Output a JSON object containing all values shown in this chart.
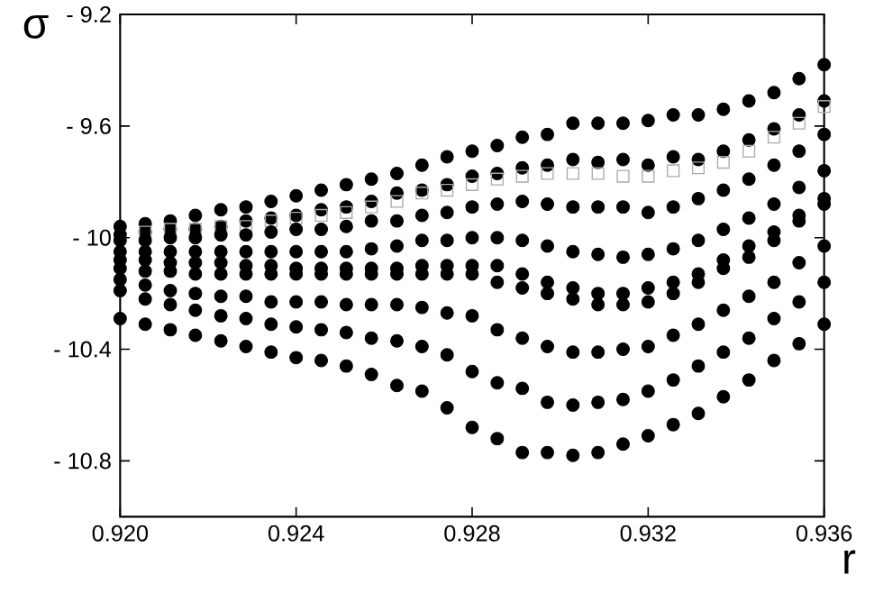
{
  "chart_data": {
    "type": "scatter",
    "xlabel": "r",
    "ylabel": "σ",
    "marker": "circle",
    "x": [
      0.92,
      0.92057,
      0.92114,
      0.92171,
      0.92229,
      0.92286,
      0.92343,
      0.924,
      0.92457,
      0.92514,
      0.92571,
      0.92629,
      0.92686,
      0.92743,
      0.928,
      0.92857,
      0.92914,
      0.92971,
      0.93029,
      0.93086,
      0.93143,
      0.932,
      0.93257,
      0.93314,
      0.93371,
      0.93429,
      0.93486,
      0.93543,
      0.936
    ],
    "series": [
      {
        "color": "#000000",
        "values": [
          -9.96,
          -9.95,
          -9.94,
          -9.92,
          -9.9,
          -9.89,
          -9.87,
          -9.85,
          -9.83,
          -9.81,
          -9.79,
          -9.77,
          -9.74,
          -9.71,
          -9.69,
          -9.67,
          -9.64,
          -9.63,
          -9.59,
          -9.59,
          -9.59,
          -9.58,
          -9.56,
          -9.56,
          -9.54,
          -9.51,
          -9.48,
          -9.43,
          -9.38
        ]
      },
      {
        "color": "#000000",
        "values": [
          -9.99,
          -9.98,
          -9.97,
          -9.97,
          -9.96,
          -9.94,
          -9.93,
          -9.92,
          -9.9,
          -9.89,
          -9.87,
          -9.84,
          -9.83,
          -9.81,
          -9.78,
          -9.77,
          -9.75,
          -9.74,
          -9.72,
          -9.73,
          -9.72,
          -9.74,
          -9.71,
          -9.72,
          -9.69,
          -9.65,
          -9.61,
          -9.56,
          -9.51
        ]
      },
      {
        "color": "#aaaaaa",
        "marker": "square",
        "values": [
          null,
          -9.98,
          -9.97,
          -9.97,
          -9.96,
          -9.96,
          -9.94,
          -9.93,
          -9.92,
          -9.91,
          -9.89,
          -9.87,
          -9.84,
          -9.83,
          -9.81,
          -9.79,
          -9.78,
          -9.77,
          -9.77,
          -9.77,
          -9.78,
          -9.78,
          -9.76,
          -9.75,
          -9.73,
          -9.69,
          -9.64,
          -9.59,
          -9.53
        ]
      },
      {
        "color": "#000000",
        "values": [
          -10.01,
          -10.01,
          -10.0,
          -10.0,
          -9.99,
          -9.99,
          -9.98,
          -9.97,
          -9.97,
          -9.96,
          -9.94,
          -9.94,
          -9.92,
          -9.91,
          -9.89,
          -9.88,
          -9.87,
          -9.88,
          -9.89,
          -9.89,
          -9.89,
          -9.91,
          -9.89,
          -9.86,
          -9.83,
          -9.79,
          -9.74,
          -9.69,
          -9.63
        ]
      },
      {
        "color": "#000000",
        "values": [
          -10.05,
          -10.05,
          -10.05,
          -10.05,
          -10.05,
          -10.05,
          -10.05,
          -10.05,
          -10.05,
          -10.05,
          -10.04,
          -10.03,
          -10.01,
          -10.01,
          -10.0,
          -10.0,
          -10.01,
          -10.03,
          -10.05,
          -10.06,
          -10.07,
          -10.06,
          -10.04,
          -10.01,
          -9.97,
          -9.93,
          -9.88,
          -9.82,
          -9.76
        ]
      },
      {
        "color": "#000000",
        "values": [
          -10.08,
          -10.08,
          -10.09,
          -10.09,
          -10.09,
          -10.1,
          -10.1,
          -10.11,
          -10.11,
          -10.11,
          -10.11,
          -10.11,
          -10.1,
          -10.1,
          -10.1,
          -10.1,
          -10.13,
          -10.16,
          -10.18,
          -10.2,
          -10.2,
          -10.18,
          -10.16,
          -10.13,
          -10.08,
          -10.03,
          -9.98,
          -9.92,
          -9.86
        ]
      },
      {
        "color": "#000000",
        "values": [
          -10.11,
          -10.12,
          -10.12,
          -10.13,
          -10.13,
          -10.13,
          -10.13,
          -10.13,
          -10.13,
          -10.13,
          -10.13,
          -10.13,
          -10.13,
          -10.13,
          -10.13,
          -10.16,
          -10.18,
          -10.2,
          -10.22,
          -10.24,
          -10.24,
          -10.23,
          -10.2,
          -10.16,
          -10.11,
          -10.07,
          -10.01,
          -9.94,
          -9.88
        ]
      },
      {
        "color": "#000000",
        "values": [
          -10.15,
          -10.17,
          -10.19,
          -10.2,
          -10.21,
          -10.21,
          -10.23,
          -10.23,
          -10.23,
          -10.24,
          -10.24,
          -10.24,
          -10.25,
          -10.27,
          -10.28,
          -10.33,
          -10.36,
          -10.39,
          -10.41,
          -10.41,
          -10.4,
          -10.39,
          -10.35,
          -10.31,
          -10.26,
          -10.21,
          -10.16,
          -10.09,
          -10.03
        ]
      },
      {
        "color": "#000000",
        "values": [
          -10.19,
          -10.22,
          -10.24,
          -10.26,
          -10.28,
          -10.29,
          -10.31,
          -10.32,
          -10.33,
          -10.34,
          -10.36,
          -10.37,
          -10.39,
          -10.42,
          -10.48,
          -10.52,
          -10.54,
          -10.59,
          -10.6,
          -10.59,
          -10.58,
          -10.55,
          -10.51,
          -10.46,
          -10.41,
          -10.36,
          -10.29,
          -10.23,
          -10.16
        ]
      },
      {
        "color": "#000000",
        "values": [
          -10.29,
          -10.31,
          -10.33,
          -10.35,
          -10.37,
          -10.39,
          -10.41,
          -10.43,
          -10.44,
          -10.46,
          -10.49,
          -10.53,
          -10.55,
          -10.61,
          -10.68,
          -10.72,
          -10.77,
          -10.77,
          -10.78,
          -10.77,
          -10.74,
          -10.71,
          -10.67,
          -10.63,
          -10.57,
          -10.51,
          -10.44,
          -10.38,
          -10.31
        ]
      }
    ],
    "xlim": [
      0.92,
      0.936
    ],
    "ylim": [
      -11.0,
      -9.2
    ],
    "xticks": [
      {
        "value": 0.92,
        "label": "0.920"
      },
      {
        "value": 0.924,
        "label": "0.924"
      },
      {
        "value": 0.928,
        "label": "0.928"
      },
      {
        "value": 0.932,
        "label": "0.932"
      },
      {
        "value": 0.936,
        "label": "0.936"
      }
    ],
    "yticks": [
      {
        "value": -10.8,
        "label": "- 10.8"
      },
      {
        "value": -10.4,
        "label": "- 10.4"
      },
      {
        "value": -10.0,
        "label": "- 10"
      },
      {
        "value": -9.6,
        "label": "- 9.6"
      },
      {
        "value": -9.2,
        "label": "- 9.2"
      }
    ]
  }
}
